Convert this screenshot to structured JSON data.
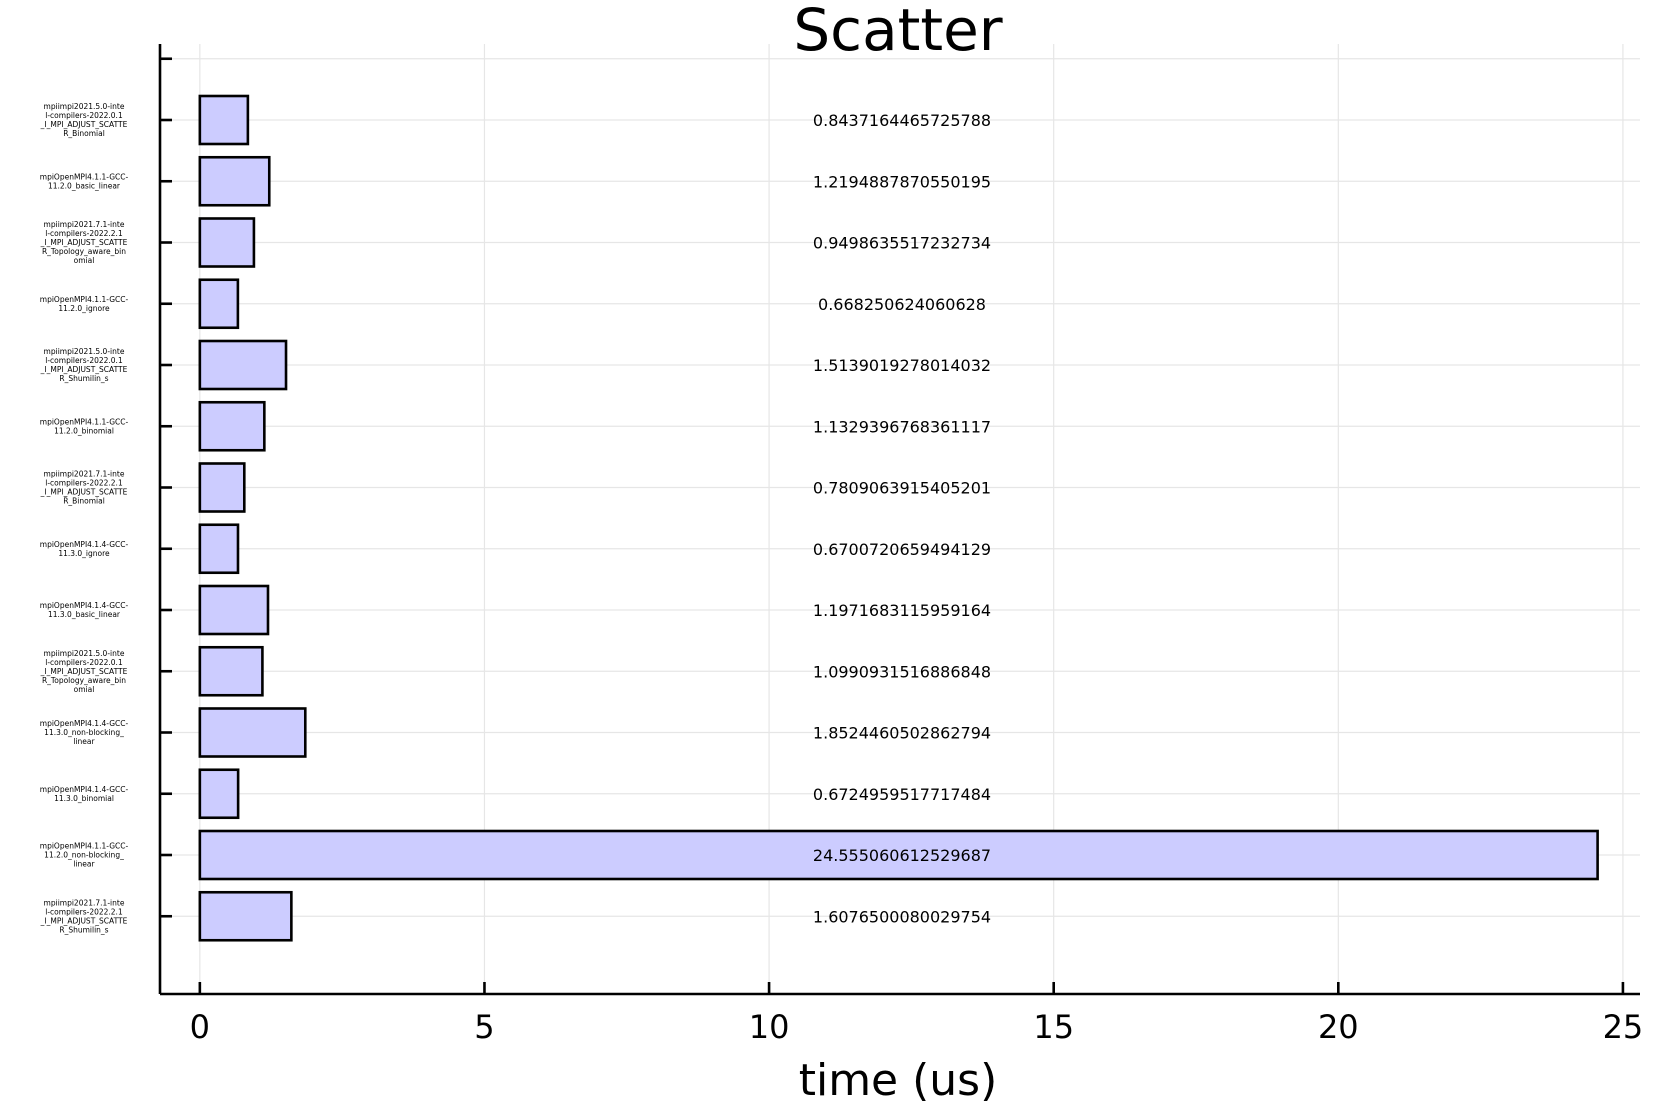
{
  "chart_data": {
    "type": "bar",
    "orientation": "horizontal",
    "title": "Scatter",
    "xlabel": "time (us)",
    "ylabel": "",
    "xlim": [
      -0.7,
      25.3
    ],
    "xticks": [
      0,
      5,
      10,
      15,
      20,
      25
    ],
    "grid": true,
    "legend": "none",
    "bar_color": "#ccccff",
    "bar_edge_color": "#000000",
    "categories": [
      [
        "mpiimpi2021.5.0-inte",
        "l-compilers-2022.0.1",
        "_I_MPI_ADJUST_SCATTE",
        "R_Binomial"
      ],
      [
        "mpiOpenMPI4.1.1-GCC-",
        "11.2.0_basic_linear"
      ],
      [
        "mpiimpi2021.7.1-inte",
        "l-compilers-2022.2.1",
        "_I_MPI_ADJUST_SCATTE",
        "R_Topology_aware_bin",
        "omial"
      ],
      [
        "mpiOpenMPI4.1.1-GCC-",
        "11.2.0_ignore"
      ],
      [
        "mpiimpi2021.5.0-inte",
        "l-compilers-2022.0.1",
        "_I_MPI_ADJUST_SCATTE",
        "R_Shumilin_s"
      ],
      [
        "mpiOpenMPI4.1.1-GCC-",
        "11.2.0_binomial"
      ],
      [
        "mpiimpi2021.7.1-inte",
        "l-compilers-2022.2.1",
        "_I_MPI_ADJUST_SCATTE",
        "R_Binomial"
      ],
      [
        "mpiOpenMPI4.1.4-GCC-",
        "11.3.0_ignore"
      ],
      [
        "mpiOpenMPI4.1.4-GCC-",
        "11.3.0_basic_linear"
      ],
      [
        "mpiimpi2021.5.0-inte",
        "l-compilers-2022.0.1",
        "_I_MPI_ADJUST_SCATTE",
        "R_Topology_aware_bin",
        "omial"
      ],
      [
        "mpiOpenMPI4.1.4-GCC-",
        "11.3.0_non-blocking_",
        "linear"
      ],
      [
        "mpiOpenMPI4.1.4-GCC-",
        "11.3.0_binomial"
      ],
      [
        "mpiOpenMPI4.1.1-GCC-",
        "11.2.0_non-blocking_",
        "linear"
      ],
      [
        "mpiimpi2021.7.1-inte",
        "l-compilers-2022.2.1",
        "_I_MPI_ADJUST_SCATTE",
        "R_Shumilin_s"
      ]
    ],
    "values": [
      0.8437164465725788,
      1.2194887870550195,
      0.9498635517232734,
      0.668250624060628,
      1.5139019278014032,
      1.1329396768361117,
      0.7809063915405201,
      0.6700720659494129,
      1.1971683115959164,
      1.0990931516886848,
      1.8524460502862794,
      0.6724959517717484,
      24.555060612529687,
      1.6076500080029754
    ],
    "value_labels": [
      "0.8437164465725788",
      "1.2194887870550195",
      "0.9498635517232734",
      "0.668250624060628",
      "1.5139019278014032",
      "1.1329396768361117",
      "0.7809063915405201",
      "0.6700720659494129",
      "1.1971683115959164",
      "1.0990931516886848",
      "1.8524460502862794",
      "0.6724959517717484",
      "24.555060612529687",
      "1.6076500080029754"
    ]
  }
}
